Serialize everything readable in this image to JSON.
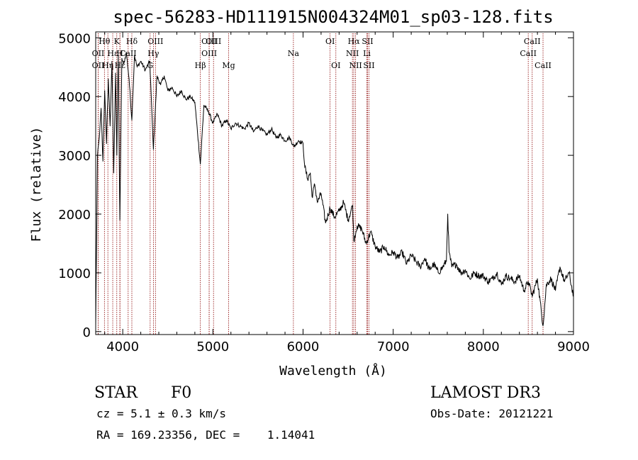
{
  "chart_data": {
    "type": "line",
    "title": "spec-56283-HD111915N004324M01_sp03-128.fits",
    "xlabel": "Wavelength (Å)",
    "ylabel": "Flux (relative)",
    "xlim": [
      3700,
      9000
    ],
    "ylim": [
      -50,
      5100
    ],
    "x_ticks": [
      4000,
      5000,
      6000,
      7000,
      8000,
      9000
    ],
    "y_ticks": [
      0,
      1000,
      2000,
      3000,
      4000,
      5000
    ],
    "series": [
      {
        "name": "flux",
        "color": "#000000",
        "x": [
          3700,
          3720,
          3740,
          3760,
          3780,
          3800,
          3820,
          3840,
          3860,
          3880,
          3900,
          3920,
          3934,
          3950,
          3968,
          3990,
          4010,
          4040,
          4070,
          4101,
          4130,
          4160,
          4200,
          4250,
          4300,
          4340,
          4380,
          4420,
          4460,
          4500,
          4550,
          4600,
          4650,
          4700,
          4750,
          4800,
          4861,
          4900,
          4950,
          5000,
          5050,
          5100,
          5150,
          5200,
          5250,
          5300,
          5350,
          5400,
          5450,
          5500,
          5550,
          5600,
          5650,
          5700,
          5750,
          5800,
          5850,
          5900,
          5950,
          6000,
          6020,
          6050,
          6080,
          6100,
          6130,
          6160,
          6200,
          6250,
          6300,
          6350,
          6400,
          6450,
          6500,
          6550,
          6563,
          6600,
          6650,
          6700,
          6750,
          6800,
          6850,
          6900,
          6950,
          7000,
          7050,
          7100,
          7150,
          7200,
          7250,
          7300,
          7350,
          7400,
          7450,
          7500,
          7550,
          7590,
          7605,
          7620,
          7650,
          7700,
          7750,
          7800,
          7850,
          7900,
          7950,
          8000,
          8050,
          8100,
          8150,
          8200,
          8250,
          8300,
          8350,
          8400,
          8450,
          8500,
          8542,
          8600,
          8662,
          8700,
          8750,
          8800,
          8850,
          8900,
          8950,
          9000
        ],
        "y": [
          100,
          3000,
          3300,
          3800,
          2900,
          4100,
          3200,
          4300,
          3500,
          4600,
          2700,
          4400,
          3000,
          4700,
          1900,
          4650,
          4550,
          4750,
          4300,
          3600,
          4700,
          4500,
          4600,
          4450,
          4600,
          3100,
          4350,
          4200,
          4350,
          4100,
          4150,
          4000,
          4100,
          3950,
          4000,
          3900,
          2850,
          3850,
          3750,
          3550,
          3700,
          3500,
          3600,
          3450,
          3550,
          3500,
          3450,
          3550,
          3400,
          3500,
          3420,
          3350,
          3450,
          3300,
          3350,
          3250,
          3300,
          3150,
          3250,
          3200,
          2800,
          2600,
          2700,
          2300,
          2500,
          2200,
          2350,
          1850,
          2100,
          1950,
          2050,
          2200,
          1900,
          2150,
          1550,
          1800,
          1750,
          1500,
          1700,
          1450,
          1350,
          1450,
          1300,
          1350,
          1250,
          1350,
          1150,
          1300,
          1200,
          1100,
          1250,
          1050,
          1150,
          1000,
          1100,
          1200,
          2000,
          1350,
          1100,
          1150,
          1000,
          1050,
          900,
          1000,
          950,
          950,
          850,
          900,
          1000,
          800,
          950,
          900,
          850,
          950,
          700,
          850,
          600,
          900,
          100,
          800,
          900,
          700,
          1100,
          850,
          1000,
          600
        ]
      }
    ],
    "lines": [
      {
        "label": "Hθ",
        "x": 3797,
        "row": 1
      },
      {
        "label": "OII",
        "x": 3727,
        "row": 2
      },
      {
        "label": "OII",
        "x": 3727,
        "row": 3
      },
      {
        "label": "Hη",
        "x": 3835,
        "row": 3
      },
      {
        "label": "Hε",
        "x": 3889,
        "row": 2
      },
      {
        "label": "K",
        "x": 3934,
        "row": 1
      },
      {
        "label": "H",
        "x": 3968,
        "row": 2
      },
      {
        "label": "Hε",
        "x": 3970,
        "row": 3
      },
      {
        "label": "Hδ",
        "x": 4101,
        "row": 1
      },
      {
        "label": "CaII",
        "x": 4060,
        "row": 2
      },
      {
        "label": "OIII",
        "x": 4363,
        "row": 1
      },
      {
        "label": "Hγ",
        "x": 4340,
        "row": 2
      },
      {
        "label": "G",
        "x": 4304,
        "row": 3
      },
      {
        "label": "OIII",
        "x": 4959,
        "row": 1
      },
      {
        "label": "OIII",
        "x": 4959,
        "row": 2
      },
      {
        "label": "Hβ",
        "x": 4861,
        "row": 3
      },
      {
        "label": "OIII",
        "x": 5007,
        "row": 1
      },
      {
        "label": "Mg",
        "x": 5175,
        "row": 3
      },
      {
        "label": "Na",
        "x": 5893,
        "row": 2
      },
      {
        "label": "OI",
        "x": 6300,
        "row": 1
      },
      {
        "label": "OI",
        "x": 6364,
        "row": 3
      },
      {
        "label": "Hα",
        "x": 6563,
        "row": 1
      },
      {
        "label": "NII",
        "x": 6548,
        "row": 2
      },
      {
        "label": "NII",
        "x": 6583,
        "row": 3
      },
      {
        "label": "SII",
        "x": 6716,
        "row": 1
      },
      {
        "label": "Li",
        "x": 6708,
        "row": 2
      },
      {
        "label": "SII",
        "x": 6731,
        "row": 3
      },
      {
        "label": "CaII",
        "x": 8542,
        "row": 1
      },
      {
        "label": "CaII",
        "x": 8498,
        "row": 2
      },
      {
        "label": "CaII",
        "x": 8662,
        "row": 3
      }
    ],
    "line_color": "#8b0000"
  },
  "info": {
    "object_class": "STAR",
    "subclass": "F0",
    "survey": "LAMOST DR3",
    "cz": "cz = 5.1 ± 0.3 km/s",
    "obs_date": "Obs-Date: 20121221",
    "coords": "RA = 169.23356, DEC =    1.14041"
  }
}
